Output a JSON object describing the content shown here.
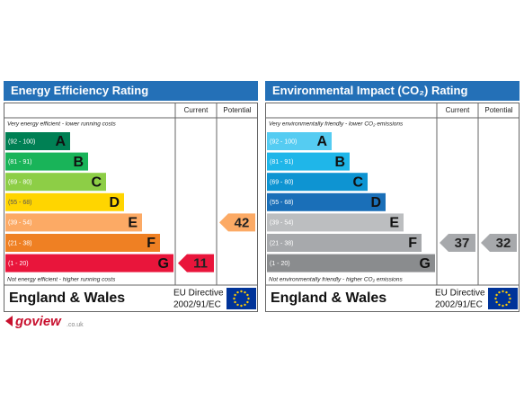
{
  "panels": [
    {
      "title": "Energy Efficiency Rating",
      "columns": [
        "Current",
        "Potential"
      ],
      "top_note": "Very energy efficient - lower running costs",
      "bottom_note": "Not energy efficient - higher running costs",
      "bands": [
        {
          "range": "(92 - 100)",
          "letter": "A",
          "min": 92,
          "color": "#008054"
        },
        {
          "range": "(81 - 91)",
          "letter": "B",
          "min": 81,
          "color": "#19b459"
        },
        {
          "range": "(69 - 80)",
          "letter": "C",
          "min": 69,
          "color": "#8dce46"
        },
        {
          "range": "(55 - 68)",
          "letter": "D",
          "min": 55,
          "color": "#ffd500"
        },
        {
          "range": "(39 - 54)",
          "letter": "E",
          "min": 39,
          "color": "#fcaa65"
        },
        {
          "range": "(21 - 38)",
          "letter": "F",
          "min": 21,
          "color": "#ef8023"
        },
        {
          "range": "(1 - 20)",
          "letter": "G",
          "min": 1,
          "color": "#e9153b"
        }
      ],
      "current": 11,
      "potential": 42,
      "footer": {
        "region": "England & Wales",
        "directive": "EU Directive",
        "code": "2002/91/EC"
      }
    },
    {
      "title": "Environmental Impact (CO₂) Rating",
      "columns": [
        "Current",
        "Potential"
      ],
      "top_note": "Very environmentally friendly - lower CO₂ emissions",
      "bottom_note": "Not environmentally friendly - higher CO₂ emissions",
      "bands": [
        {
          "range": "(92 - 100)",
          "letter": "A",
          "min": 92,
          "color": "#55ccf2"
        },
        {
          "range": "(81 - 91)",
          "letter": "B",
          "min": 81,
          "color": "#1fb6e9"
        },
        {
          "range": "(69 - 80)",
          "letter": "C",
          "min": 69,
          "color": "#0e94d2"
        },
        {
          "range": "(55 - 68)",
          "letter": "D",
          "min": 55,
          "color": "#1a6fb8"
        },
        {
          "range": "(39 - 54)",
          "letter": "E",
          "min": 39,
          "color": "#bcbec0"
        },
        {
          "range": "(21 - 38)",
          "letter": "F",
          "min": 21,
          "color": "#a7a9ac"
        },
        {
          "range": "(1 - 20)",
          "letter": "G",
          "min": 1,
          "color": "#8a8c8e"
        }
      ],
      "current": 37,
      "potential": 32,
      "footer": {
        "region": "England & Wales",
        "directive": "EU Directive",
        "code": "2002/91/EC"
      }
    }
  ],
  "logo": {
    "name": "goview",
    "domain": ".co.uk"
  }
}
